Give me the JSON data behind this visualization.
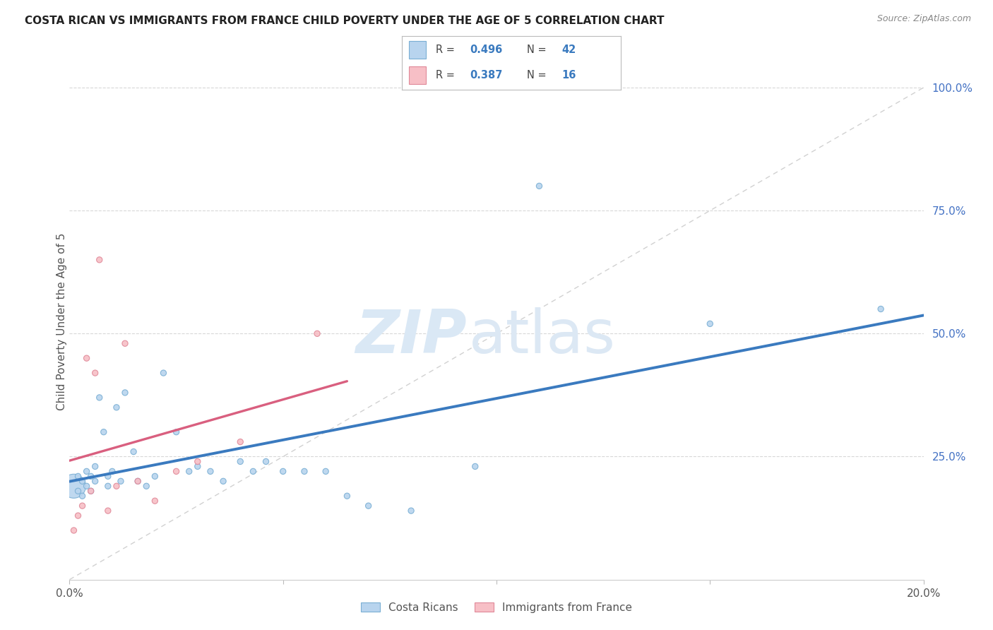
{
  "title": "COSTA RICAN VS IMMIGRANTS FROM FRANCE CHILD POVERTY UNDER THE AGE OF 5 CORRELATION CHART",
  "source": "Source: ZipAtlas.com",
  "ylabel": "Child Poverty Under the Age of 5",
  "xlim": [
    0.0,
    0.2
  ],
  "ylim": [
    0.0,
    1.05
  ],
  "background_color": "#ffffff",
  "grid_color": "#d8d8d8",
  "diagonal_color": "#cccccc",
  "blue_line_color": "#3a7abf",
  "pink_line_color": "#d95f7f",
  "blue_scatter_face": "#b8d4ee",
  "blue_scatter_edge": "#7aafd4",
  "pink_scatter_face": "#f7bfc6",
  "pink_scatter_edge": "#e08898",
  "right_tick_color": "#4472c4",
  "title_color": "#222222",
  "source_color": "#888888",
  "ylabel_color": "#555555",
  "xtick_color": "#555555",
  "legend_box_color": "#cccccc",
  "watermark_zip_color": "#dae8f5",
  "watermark_atlas_color": "#dce8f4",
  "cr_r": "0.496",
  "cr_n": "42",
  "fr_r": "0.387",
  "fr_n": "16",
  "costa_ricans_x": [
    0.001,
    0.002,
    0.002,
    0.003,
    0.003,
    0.004,
    0.004,
    0.005,
    0.005,
    0.006,
    0.006,
    0.007,
    0.008,
    0.009,
    0.009,
    0.01,
    0.011,
    0.012,
    0.013,
    0.015,
    0.016,
    0.018,
    0.02,
    0.022,
    0.025,
    0.028,
    0.03,
    0.033,
    0.036,
    0.04,
    0.043,
    0.046,
    0.05,
    0.055,
    0.06,
    0.065,
    0.07,
    0.08,
    0.095,
    0.11,
    0.15,
    0.19
  ],
  "costa_ricans_y": [
    0.19,
    0.21,
    0.18,
    0.2,
    0.17,
    0.22,
    0.19,
    0.21,
    0.18,
    0.2,
    0.23,
    0.37,
    0.3,
    0.21,
    0.19,
    0.22,
    0.35,
    0.2,
    0.38,
    0.26,
    0.2,
    0.19,
    0.21,
    0.42,
    0.3,
    0.22,
    0.23,
    0.22,
    0.2,
    0.24,
    0.22,
    0.24,
    0.22,
    0.22,
    0.22,
    0.17,
    0.15,
    0.14,
    0.23,
    0.8,
    0.52,
    0.55
  ],
  "costa_sizes": [
    600,
    35,
    35,
    35,
    35,
    35,
    35,
    35,
    35,
    35,
    35,
    35,
    35,
    35,
    35,
    35,
    35,
    35,
    35,
    35,
    35,
    35,
    35,
    35,
    35,
    35,
    35,
    35,
    35,
    35,
    35,
    35,
    35,
    35,
    35,
    35,
    35,
    35,
    35,
    35,
    35,
    35
  ],
  "france_x": [
    0.001,
    0.002,
    0.003,
    0.004,
    0.005,
    0.006,
    0.007,
    0.009,
    0.011,
    0.013,
    0.016,
    0.02,
    0.025,
    0.03,
    0.04,
    0.058
  ],
  "france_y": [
    0.1,
    0.13,
    0.15,
    0.45,
    0.18,
    0.42,
    0.65,
    0.14,
    0.19,
    0.48,
    0.2,
    0.16,
    0.22,
    0.24,
    0.28,
    0.5
  ],
  "france_sizes": [
    35,
    35,
    35,
    35,
    35,
    35,
    35,
    35,
    35,
    35,
    35,
    35,
    35,
    35,
    35,
    35
  ],
  "blue_line_x_start": 0.0,
  "blue_line_x_end": 0.2,
  "pink_line_x_start": 0.0,
  "pink_line_x_end": 0.065
}
